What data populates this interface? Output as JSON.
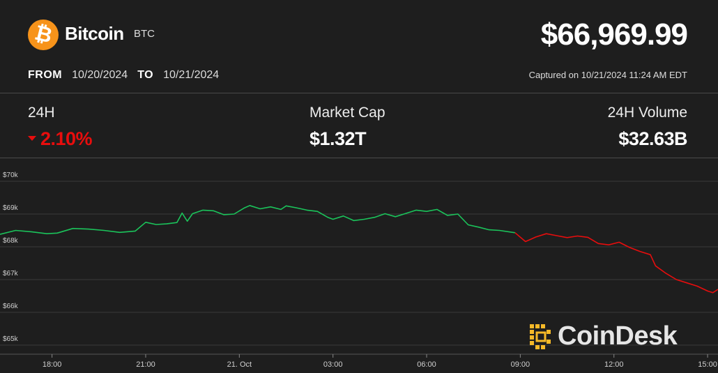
{
  "coin": {
    "name": "Bitcoin",
    "ticker": "BTC",
    "logo_glyph": "₿",
    "logo_color": "#f7931a"
  },
  "price": "$66,969.99",
  "range": {
    "from_label": "FROM",
    "from": "10/20/2024",
    "to_label": "TO",
    "to": "10/21/2024"
  },
  "captured": "Captured on 10/21/2024 11:24 AM EDT",
  "stats": {
    "change": {
      "label": "24H",
      "value": "2.10%",
      "direction": "down"
    },
    "market_cap": {
      "label": "Market Cap",
      "value": "$1.32T"
    },
    "volume": {
      "label": "24H Volume",
      "value": "$32.63B"
    }
  },
  "brand": {
    "name": "CoinDesk",
    "logo_color": "#f5b928"
  },
  "colors": {
    "up": "#1bc45b",
    "down": "#e80d0d",
    "background": "#1e1e1e"
  },
  "chart_data": {
    "type": "line",
    "title": "",
    "xlabel": "",
    "ylabel": "",
    "grid": true,
    "ylim": [
      65000,
      70000
    ],
    "xlim": [
      "20 Oct 16:20",
      "21 Oct 15:20"
    ],
    "yticks": [
      {
        "value": 70000,
        "label": "$70k"
      },
      {
        "value": 69000,
        "label": "$69k"
      },
      {
        "value": 68000,
        "label": "$68k"
      },
      {
        "value": 67000,
        "label": "$67k"
      },
      {
        "value": 66000,
        "label": "$66k"
      },
      {
        "value": 65000,
        "label": "$65k"
      }
    ],
    "xticks": [
      {
        "value": "20 Oct 18:00",
        "label": "18:00"
      },
      {
        "value": "20 Oct 21:00",
        "label": "21:00"
      },
      {
        "value": "21 Oct 00:00",
        "label": "21. Oct"
      },
      {
        "value": "21 Oct 03:00",
        "label": "03:00"
      },
      {
        "value": "21 Oct 06:00",
        "label": "06:00"
      },
      {
        "value": "21 Oct 09:00",
        "label": "09:00"
      },
      {
        "value": "21 Oct 12:00",
        "label": "12:00"
      },
      {
        "value": "21 Oct 15:00",
        "label": "15:00"
      }
    ],
    "series": [
      {
        "color_up": "#1bc45b",
        "color_down": "#e80d0d",
        "split_at": "21 Oct 08:50",
        "x": [
          "20 Oct 16:20",
          "20 Oct 16:50",
          "20 Oct 17:20",
          "20 Oct 17:50",
          "20 Oct 18:10",
          "20 Oct 18:40",
          "20 Oct 19:10",
          "20 Oct 19:40",
          "20 Oct 20:10",
          "20 Oct 20:40",
          "20 Oct 21:00",
          "20 Oct 21:20",
          "20 Oct 21:40",
          "20 Oct 22:00",
          "20 Oct 22:10",
          "20 Oct 22:20",
          "20 Oct 22:30",
          "20 Oct 22:50",
          "20 Oct 23:10",
          "20 Oct 23:30",
          "20 Oct 23:50",
          "21 Oct 00:10",
          "21 Oct 00:20",
          "21 Oct 00:40",
          "21 Oct 01:00",
          "21 Oct 01:20",
          "21 Oct 01:30",
          "21 Oct 01:50",
          "21 Oct 02:10",
          "21 Oct 02:30",
          "21 Oct 02:50",
          "21 Oct 03:00",
          "21 Oct 03:20",
          "21 Oct 03:40",
          "21 Oct 04:00",
          "21 Oct 04:20",
          "21 Oct 04:40",
          "21 Oct 05:00",
          "21 Oct 05:20",
          "21 Oct 05:40",
          "21 Oct 06:00",
          "21 Oct 06:20",
          "21 Oct 06:40",
          "21 Oct 07:00",
          "21 Oct 07:20",
          "21 Oct 07:40",
          "21 Oct 08:00",
          "21 Oct 08:20",
          "21 Oct 08:50",
          "21 Oct 09:10",
          "21 Oct 09:30",
          "21 Oct 09:50",
          "21 Oct 10:10",
          "21 Oct 10:30",
          "21 Oct 10:50",
          "21 Oct 11:10",
          "21 Oct 11:30",
          "21 Oct 11:50",
          "21 Oct 12:10",
          "21 Oct 12:30",
          "21 Oct 12:50",
          "21 Oct 13:10",
          "21 Oct 13:20",
          "21 Oct 13:40",
          "21 Oct 14:00",
          "21 Oct 14:20",
          "21 Oct 14:40",
          "21 Oct 15:00",
          "21 Oct 15:10",
          "21 Oct 15:20"
        ],
        "y": [
          68380,
          68500,
          68460,
          68400,
          68420,
          68560,
          68540,
          68500,
          68440,
          68480,
          68750,
          68680,
          68700,
          68740,
          69030,
          68780,
          69010,
          69120,
          69100,
          68980,
          69000,
          69190,
          69260,
          69160,
          69220,
          69140,
          69250,
          69190,
          69120,
          69080,
          68900,
          68840,
          68940,
          68800,
          68840,
          68900,
          69010,
          68920,
          69020,
          69120,
          69080,
          69140,
          68960,
          69000,
          68670,
          68600,
          68520,
          68500,
          68430,
          68160,
          68300,
          68400,
          68340,
          68280,
          68330,
          68290,
          68100,
          68060,
          68140,
          67980,
          67860,
          67760,
          67420,
          67190,
          67000,
          66900,
          66800,
          66650,
          66600,
          66700
        ]
      }
    ]
  }
}
